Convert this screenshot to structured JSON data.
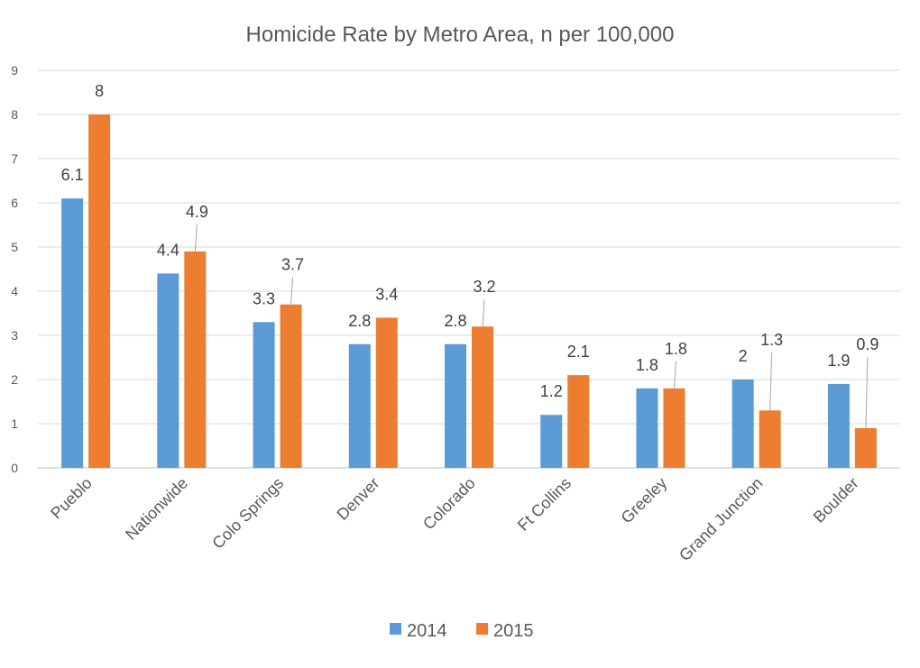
{
  "chart_data": {
    "type": "bar",
    "title": "Homicide Rate by Metro Area, n per 100,000",
    "xlabel": "",
    "ylabel": "",
    "ylim": [
      0,
      9
    ],
    "yticks": [
      0,
      1,
      2,
      3,
      4,
      5,
      6,
      7,
      8,
      9
    ],
    "grid": true,
    "legend_position": "bottom",
    "categories": [
      "Pueblo",
      "Nationwide",
      "Colo Springs",
      "Denver",
      "Colorado",
      "Ft Collins",
      "Greeley",
      "Grand Junction",
      "Boulder"
    ],
    "series": [
      {
        "name": "2014",
        "color": "#5b9bd5",
        "values": [
          6.1,
          4.4,
          3.3,
          2.8,
          2.8,
          1.2,
          1.8,
          2,
          1.9
        ],
        "labels": [
          "6.1",
          "4.4",
          "3.3",
          "2.8",
          "2.8",
          "1.2",
          "1.8",
          "2",
          "1.9"
        ]
      },
      {
        "name": "2015",
        "color": "#ed7d31",
        "values": [
          8,
          4.9,
          3.7,
          3.4,
          3.2,
          2.1,
          1.8,
          1.3,
          0.9
        ],
        "labels": [
          "8",
          "4.9",
          "3.7",
          "3.4",
          "3.2",
          "2.1",
          "1.8",
          "1.3",
          "0.9"
        ]
      }
    ]
  }
}
